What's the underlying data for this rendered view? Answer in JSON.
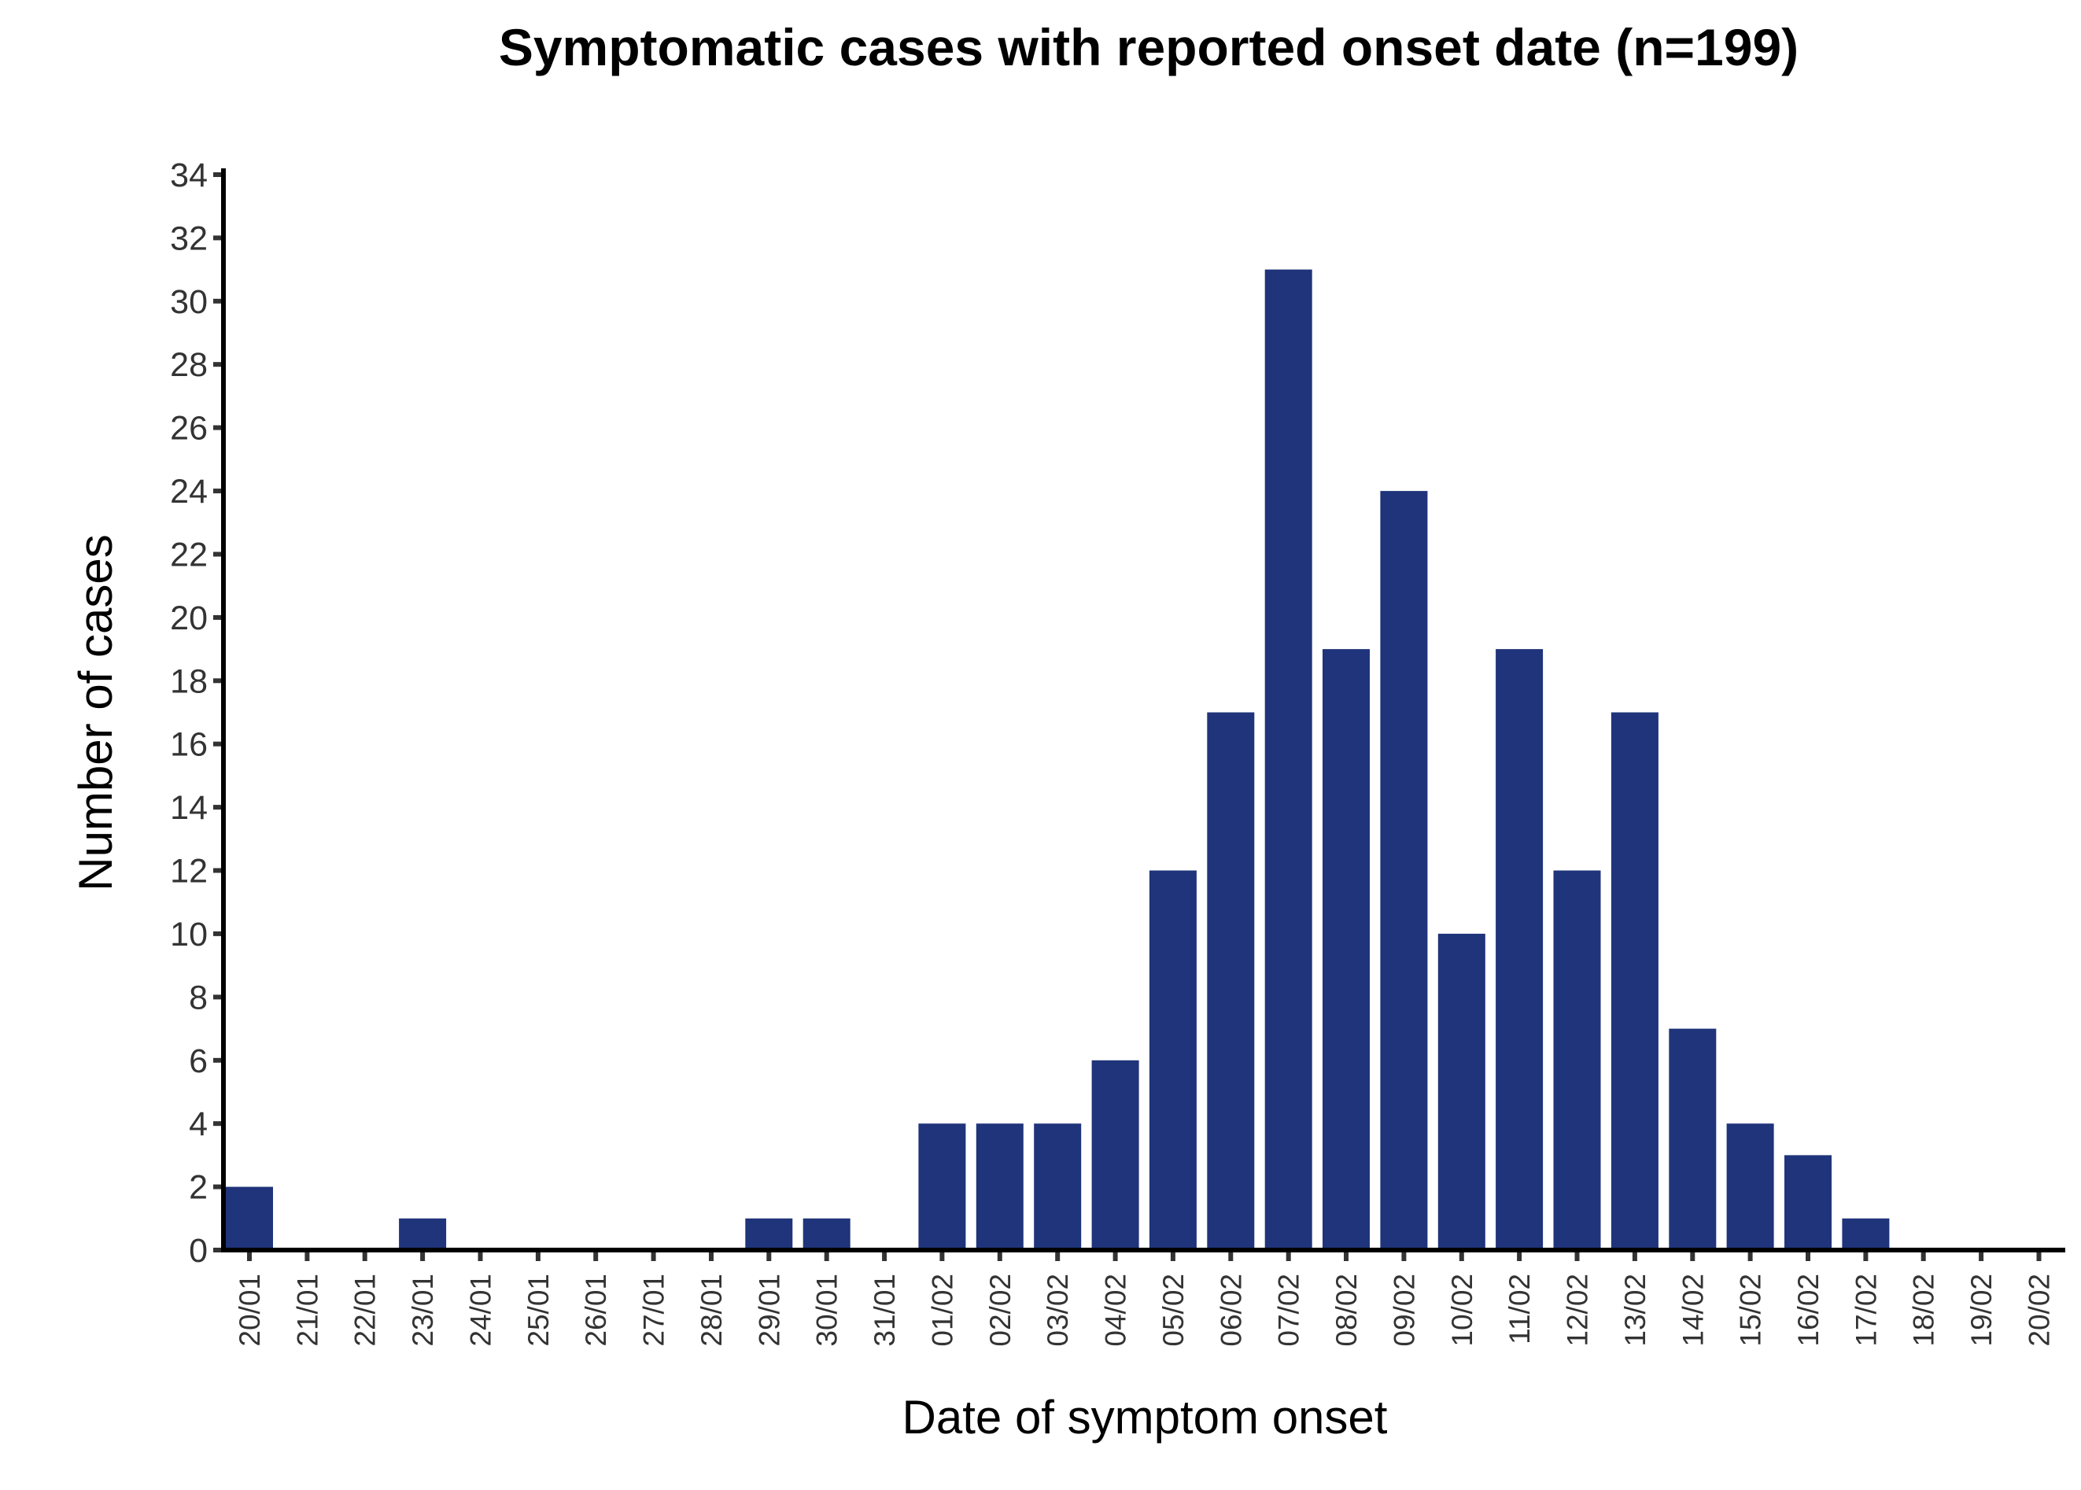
{
  "chart_data": {
    "type": "bar",
    "title": "Symptomatic cases with reported onset date (n=199)",
    "xlabel": "Date of symptom onset",
    "ylabel": "Number of cases",
    "ylim": [
      0,
      34
    ],
    "yticks": [
      0,
      2,
      4,
      6,
      8,
      10,
      12,
      14,
      16,
      18,
      20,
      22,
      24,
      26,
      28,
      30,
      32,
      34
    ],
    "grid": false,
    "legend": "none",
    "bar_color": "#1F347A",
    "categories": [
      "20/01",
      "21/01",
      "22/01",
      "23/01",
      "24/01",
      "25/01",
      "26/01",
      "27/01",
      "28/01",
      "29/01",
      "30/01",
      "31/01",
      "01/02",
      "02/02",
      "03/02",
      "04/02",
      "05/02",
      "06/02",
      "07/02",
      "08/02",
      "09/02",
      "10/02",
      "11/02",
      "12/02",
      "13/02",
      "14/02",
      "15/02",
      "16/02",
      "17/02",
      "18/02",
      "19/02",
      "20/02"
    ],
    "values": [
      2,
      0,
      0,
      1,
      0,
      0,
      0,
      0,
      0,
      1,
      1,
      0,
      4,
      4,
      4,
      6,
      12,
      17,
      31,
      19,
      24,
      10,
      19,
      12,
      17,
      7,
      4,
      3,
      1,
      0,
      0,
      0
    ]
  }
}
